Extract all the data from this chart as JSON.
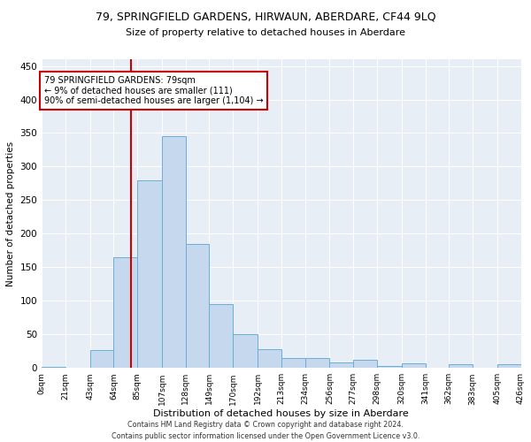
{
  "title": "79, SPRINGFIELD GARDENS, HIRWAUN, ABERDARE, CF44 9LQ",
  "subtitle": "Size of property relative to detached houses in Aberdare",
  "xlabel": "Distribution of detached houses by size in Aberdare",
  "ylabel": "Number of detached properties",
  "footer1": "Contains HM Land Registry data © Crown copyright and database right 2024.",
  "footer2": "Contains public sector information licensed under the Open Government Licence v3.0.",
  "property_size": 79,
  "property_label": "79 SPRINGFIELD GARDENS: 79sqm",
  "annotation_line1": "← 9% of detached houses are smaller (111)",
  "annotation_line2": "90% of semi-detached houses are larger (1,104) →",
  "bar_color": "#c5d8ed",
  "bar_edge_color": "#6baed6",
  "line_color": "#cc0000",
  "annotation_box_edge": "#cc0000",
  "background_color": "#e8eef6",
  "bin_edges": [
    0,
    21,
    43,
    64,
    85,
    107,
    128,
    149,
    170,
    192,
    213,
    234,
    256,
    277,
    298,
    320,
    341,
    362,
    383,
    405,
    426
  ],
  "bin_labels": [
    "0sqm",
    "21sqm",
    "43sqm",
    "64sqm",
    "85sqm",
    "107sqm",
    "128sqm",
    "149sqm",
    "170sqm",
    "192sqm",
    "213sqm",
    "234sqm",
    "256sqm",
    "277sqm",
    "298sqm",
    "320sqm",
    "341sqm",
    "362sqm",
    "383sqm",
    "405sqm",
    "426sqm"
  ],
  "hist_values": [
    2,
    0,
    27,
    165,
    280,
    345,
    185,
    95,
    50,
    28,
    15,
    15,
    8,
    12,
    3,
    7,
    0,
    5,
    0,
    5
  ],
  "ylim": [
    0,
    460
  ],
  "yticks": [
    0,
    50,
    100,
    150,
    200,
    250,
    300,
    350,
    400,
    450
  ]
}
